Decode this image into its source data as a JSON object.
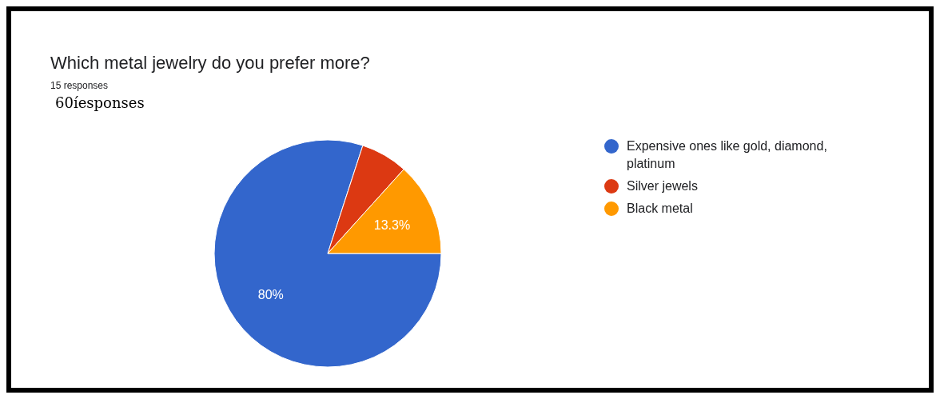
{
  "chart_data": {
    "type": "pie",
    "title": "Which metal jewelry do you prefer more?",
    "subtitle": "15 responses",
    "annotations": [
      "60íesponses"
    ],
    "categories": [
      "Expensive ones like gold, diamond, platinum",
      "Silver jewels",
      "Black metal"
    ],
    "values": [
      80,
      6.7,
      13.3
    ],
    "colors": [
      "#3366cc",
      "#dc3912",
      "#ff9900"
    ],
    "value_labels": [
      "80%",
      null,
      "13.3%"
    ],
    "legend": "right"
  }
}
